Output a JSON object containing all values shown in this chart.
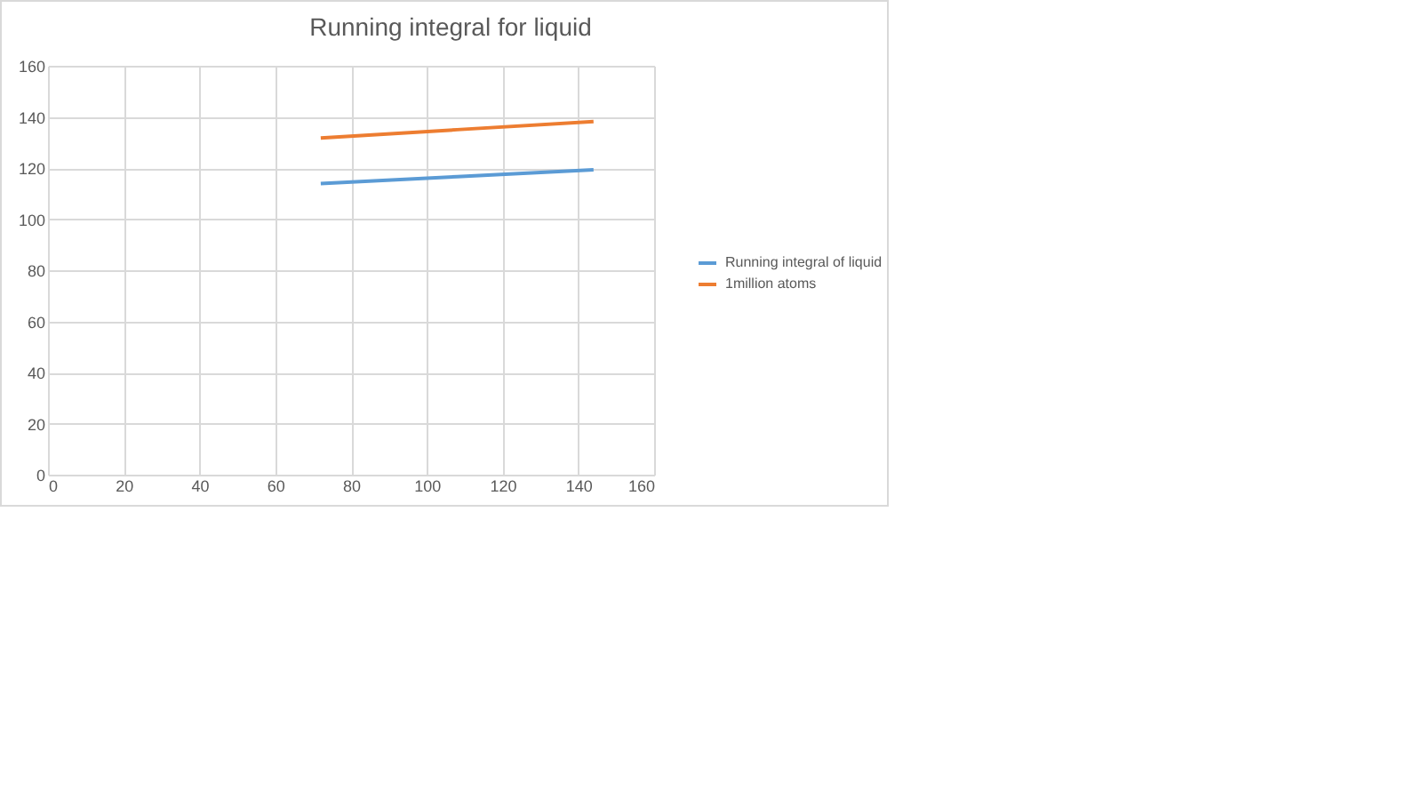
{
  "chart_data": {
    "type": "line",
    "title": "Running integral for liquid",
    "x": [
      72,
      108,
      144
    ],
    "series": [
      {
        "name": "Running integral of liquid",
        "color": "#5b9bd5",
        "values": [
          113.9,
          116.6,
          119.3
        ]
      },
      {
        "name": "1million atoms",
        "color": "#ed7d31",
        "values": [
          131.7,
          135.0,
          138.2
        ]
      }
    ],
    "xlim": [
      0,
      160
    ],
    "xticks": [
      0,
      20,
      40,
      60,
      80,
      100,
      120,
      140,
      160
    ],
    "ylim": [
      0,
      160
    ],
    "yticks": [
      0,
      20,
      40,
      60,
      80,
      100,
      120,
      140,
      160
    ],
    "grid": true,
    "legend": "right",
    "marker": "none",
    "line_style": "solid"
  }
}
